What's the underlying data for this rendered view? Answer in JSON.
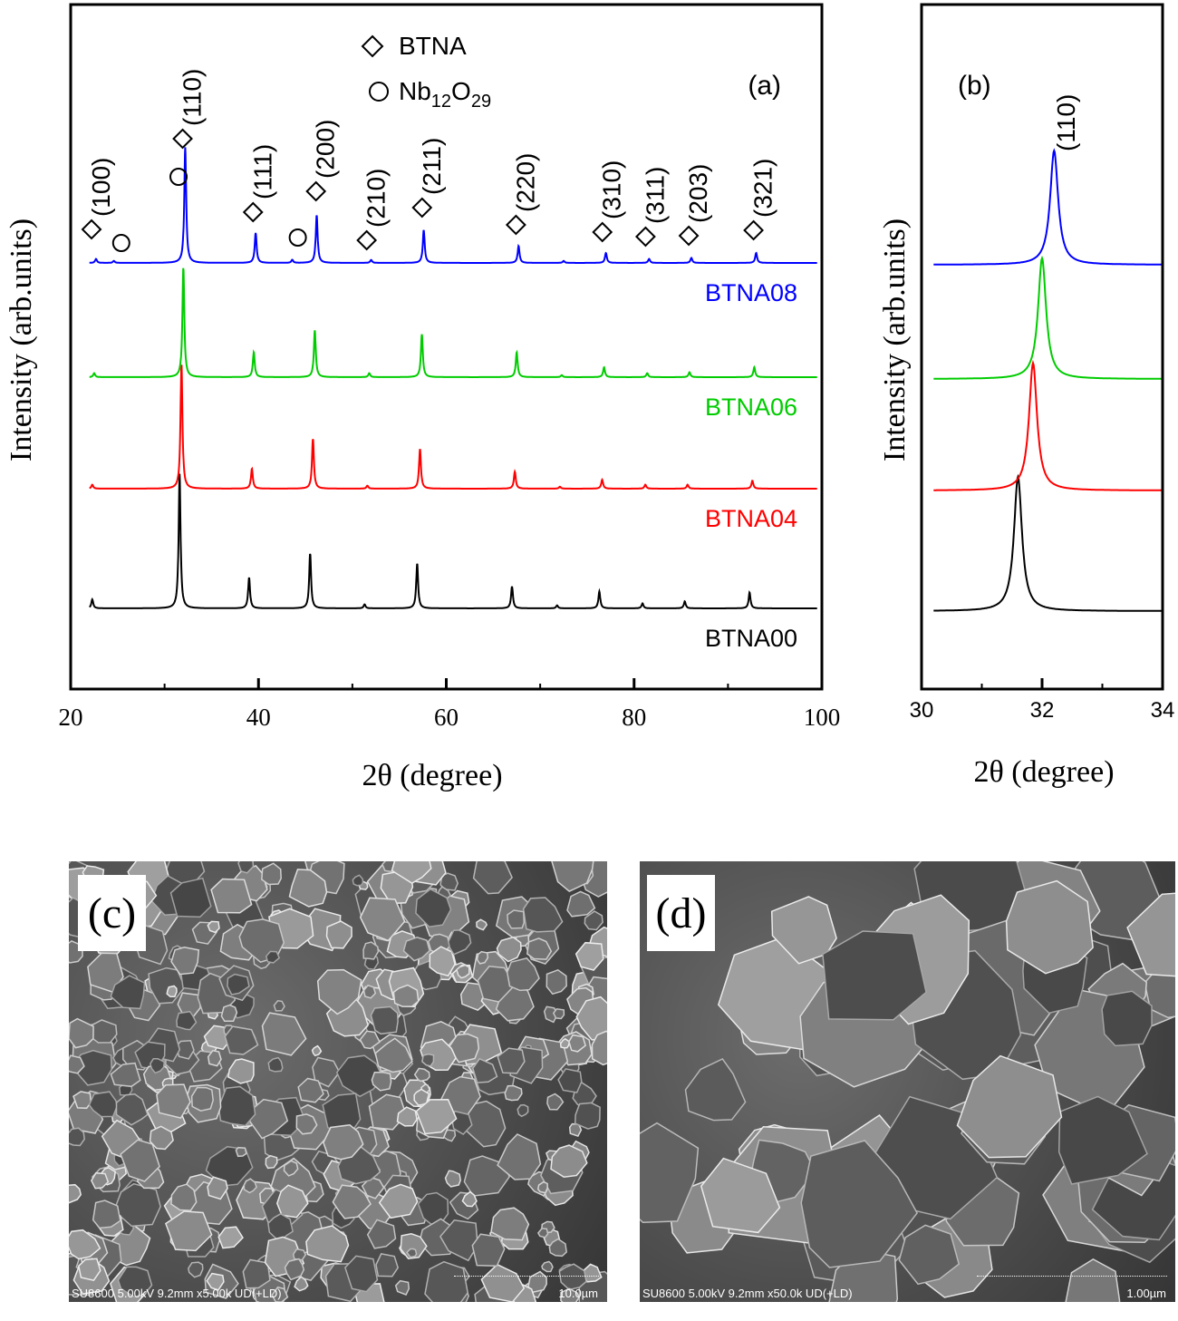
{
  "chart_data": [
    {
      "panel": "(a)",
      "type": "line",
      "xlabel": "2θ (degree)",
      "ylabel": "Intensity (arb.units)",
      "xlim": [
        20,
        100
      ],
      "xticks": [
        20,
        40,
        60,
        80,
        100
      ],
      "legend": [
        {
          "marker": "diamond",
          "label": "BTNA"
        },
        {
          "marker": "circle",
          "label_main": "Nb",
          "sub1": "12",
          "label_mid": "O",
          "sub2": "29"
        }
      ],
      "series": [
        {
          "name": "BTNA00",
          "color": "#000000",
          "shift": 0.0,
          "peaks": [
            [
              22.3,
              0.09
            ],
            [
              31.6,
              1.35
            ],
            [
              39.0,
              0.31
            ],
            [
              45.5,
              0.55
            ],
            [
              51.3,
              0.04
            ],
            [
              56.9,
              0.45
            ],
            [
              67.0,
              0.22
            ],
            [
              71.8,
              0.03
            ],
            [
              76.3,
              0.17
            ],
            [
              80.9,
              0.05
            ],
            [
              85.4,
              0.07
            ],
            [
              92.3,
              0.16
            ]
          ]
        },
        {
          "name": "BTNA04",
          "color": "#ff0000",
          "shift": 0.25,
          "peaks": [
            [
              22.3,
              0.04
            ],
            [
              31.8,
              1.25
            ],
            [
              39.3,
              0.2
            ],
            [
              45.8,
              0.5
            ],
            [
              51.6,
              0.03
            ],
            [
              57.2,
              0.4
            ],
            [
              67.3,
              0.17
            ],
            [
              72.1,
              0.02
            ],
            [
              76.6,
              0.09
            ],
            [
              81.2,
              0.04
            ],
            [
              85.7,
              0.04
            ],
            [
              92.6,
              0.08
            ]
          ]
        },
        {
          "name": "BTNA06",
          "color": "#00cc00",
          "shift": 0.45,
          "peaks": [
            [
              22.5,
              0.04
            ],
            [
              32.0,
              1.1
            ],
            [
              39.5,
              0.25
            ],
            [
              46.0,
              0.47
            ],
            [
              51.8,
              0.04
            ],
            [
              57.4,
              0.43
            ],
            [
              67.5,
              0.25
            ],
            [
              72.3,
              0.02
            ],
            [
              76.8,
              0.1
            ],
            [
              81.4,
              0.04
            ],
            [
              85.9,
              0.05
            ],
            [
              92.8,
              0.1
            ]
          ]
        },
        {
          "name": "BTNA08",
          "color": "#0000ff",
          "shift": 0.65,
          "peaks": [
            [
              22.7,
              0.04
            ],
            [
              24.6,
              0.02
            ],
            [
              32.2,
              1.16
            ],
            [
              39.7,
              0.3
            ],
            [
              43.6,
              0.03
            ],
            [
              46.2,
              0.48
            ],
            [
              52.0,
              0.03
            ],
            [
              57.6,
              0.33
            ],
            [
              67.7,
              0.17
            ],
            [
              72.5,
              0.02
            ],
            [
              77.0,
              0.1
            ],
            [
              81.6,
              0.04
            ],
            [
              86.1,
              0.05
            ],
            [
              93.0,
              0.1
            ]
          ]
        }
      ],
      "annotations": [
        {
          "marker": "diamond",
          "x": 22.8,
          "label": "(100)"
        },
        {
          "marker": "circle",
          "x": 25.0
        },
        {
          "marker": "circle",
          "x": 31.1
        },
        {
          "marker": "diamond",
          "x": 32.5,
          "label": "(110)"
        },
        {
          "marker": "diamond",
          "x": 40.0,
          "label": "(111)"
        },
        {
          "marker": "circle",
          "x": 43.8
        },
        {
          "marker": "diamond",
          "x": 46.7,
          "label": "(200)"
        },
        {
          "marker": "diamond",
          "x": 52.1,
          "label": "(210)"
        },
        {
          "marker": "diamond",
          "x": 58.0,
          "label": "(211)"
        },
        {
          "marker": "diamond",
          "x": 68.0,
          "label": "(220)"
        },
        {
          "marker": "diamond",
          "x": 77.2,
          "label": "(310)"
        },
        {
          "marker": "diamond",
          "x": 81.8,
          "label": "(311)"
        },
        {
          "marker": "diamond",
          "x": 86.4,
          "label": "(203)"
        },
        {
          "marker": "diamond",
          "x": 93.3,
          "label": "(321)"
        }
      ]
    },
    {
      "panel": "(b)",
      "type": "line",
      "xlabel": "2θ (degree)",
      "ylabel": "Intensity (arb.units)",
      "xlim": [
        30,
        34
      ],
      "xticks": [
        30,
        32,
        34
      ],
      "peak_label": "(110)",
      "series": [
        {
          "name": "BTNA00",
          "color": "#000000",
          "center": 31.6,
          "height": 1.0,
          "baseline": 0.0
        },
        {
          "name": "BTNA04",
          "color": "#ff0000",
          "center": 31.85,
          "height": 0.95,
          "baseline": 0.28
        },
        {
          "name": "BTNA06",
          "color": "#00cc00",
          "center": 32.0,
          "height": 0.9,
          "baseline": 0.54
        },
        {
          "name": "BTNA08",
          "color": "#0000ff",
          "center": 32.2,
          "height": 0.85,
          "baseline": 0.8
        }
      ]
    }
  ],
  "sem": [
    {
      "label": "(c)",
      "info": "SU8600 5.00kV 9.2mm x5.00k UD(+LD)",
      "scale": "10.0µm"
    },
    {
      "label": "(d)",
      "info": "SU8600 5.00kV 9.2mm x50.0k UD(+LD)",
      "scale": "1.00µm"
    }
  ]
}
